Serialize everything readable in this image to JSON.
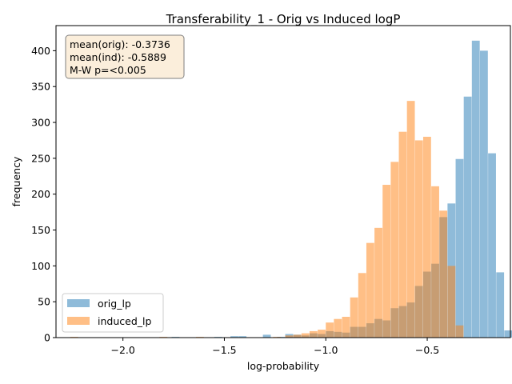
{
  "chart_data": {
    "type": "bar",
    "title": "Transferability_1 - Orig vs Induced logP",
    "xlabel": "log-probability",
    "ylabel": "frequency",
    "xlim": [
      -2.33,
      -0.09
    ],
    "ylim": [
      0,
      435
    ],
    "bin_width": 0.0388,
    "x_ticks": [
      -2.0,
      -1.5,
      -1.0,
      -0.5
    ],
    "x_tick_labels": [
      "−2.0",
      "−1.5",
      "−1.0",
      "−0.5"
    ],
    "y_ticks": [
      0,
      50,
      100,
      150,
      200,
      250,
      300,
      350,
      400
    ],
    "y_tick_labels": [
      "0",
      "50",
      "100",
      "150",
      "200",
      "250",
      "300",
      "350",
      "400"
    ],
    "legend_position": "lower-left",
    "annotation": {
      "position": "top-left",
      "lines": [
        "mean(orig): -0.3736",
        "mean(ind): -0.5889",
        "M-W p=<0.005"
      ]
    },
    "series": [
      {
        "name": "orig_lp",
        "color": "#1f77b4",
        "alpha": 0.5,
        "bin_starts": [
          -1.76,
          -1.55,
          -1.47,
          -1.43,
          -1.31,
          -1.24,
          -1.2,
          -1.16,
          -1.12,
          -1.08,
          -1.04,
          -1.0,
          -0.96,
          -0.92,
          -0.88,
          -0.84,
          -0.8,
          -0.76,
          -0.72,
          -0.68,
          -0.64,
          -0.6,
          -0.56,
          -0.52,
          -0.48,
          -0.44,
          -0.4,
          -0.36,
          -0.32,
          -0.28,
          -0.24,
          -0.2,
          -0.16,
          -0.12
        ],
        "values": [
          1,
          1,
          2,
          2,
          4,
          1,
          5,
          4,
          3,
          6,
          5,
          9,
          8,
          7,
          15,
          15,
          20,
          26,
          24,
          41,
          44,
          49,
          72,
          92,
          103,
          168,
          187,
          249,
          336,
          414,
          400,
          257,
          91,
          10
        ]
      },
      {
        "name": "induced_lp",
        "color": "#ff7f0e",
        "alpha": 0.5,
        "bin_starts": [
          -2.26,
          -1.82,
          -1.64,
          -1.26,
          -1.2,
          -1.16,
          -1.12,
          -1.08,
          -1.04,
          -1.0,
          -0.96,
          -0.92,
          -0.88,
          -0.84,
          -0.8,
          -0.76,
          -0.72,
          -0.68,
          -0.64,
          -0.6,
          -0.56,
          -0.52,
          -0.48,
          -0.44,
          -0.4,
          -0.36
        ],
        "values": [
          1,
          1,
          1,
          1,
          3,
          4,
          6,
          9,
          11,
          21,
          26,
          29,
          56,
          90,
          132,
          153,
          213,
          245,
          287,
          330,
          275,
          280,
          211,
          177,
          100,
          17
        ]
      }
    ]
  }
}
